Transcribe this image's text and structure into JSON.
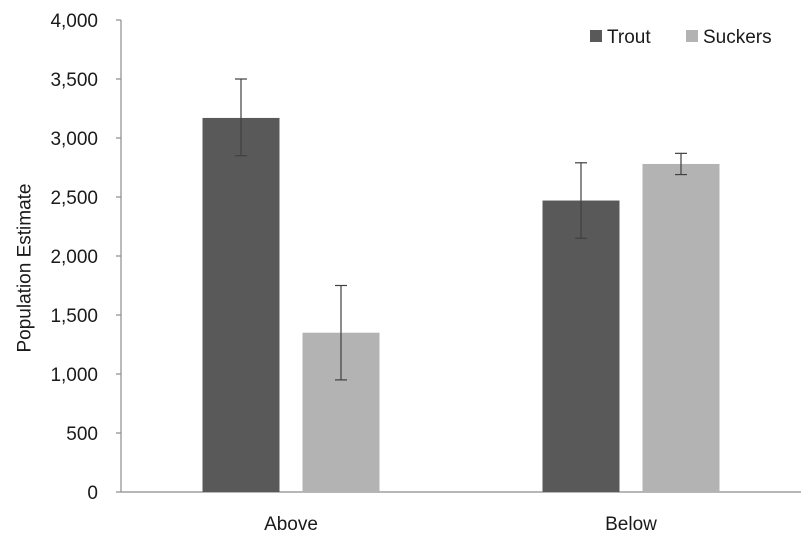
{
  "chart_data": {
    "type": "bar",
    "title": "",
    "xlabel": "",
    "ylabel": "Population Estimate",
    "categories": [
      "Above",
      "Below"
    ],
    "ylim": [
      0,
      4000
    ],
    "yticks": [
      "0",
      "500",
      "1,000",
      "1,500",
      "2,000",
      "2,500",
      "3,000",
      "3,500",
      "4,000"
    ],
    "ytick_values": [
      0,
      500,
      1000,
      1500,
      2000,
      2500,
      3000,
      3500,
      4000
    ],
    "grid": false,
    "legend_position": "top-right",
    "series": [
      {
        "name": "Trout",
        "color": "#595959",
        "values": [
          3170,
          2470
        ],
        "error_low": [
          2850,
          2150
        ],
        "error_high": [
          3500,
          2790
        ]
      },
      {
        "name": "Suckers",
        "color": "#b3b3b3",
        "values": [
          1350,
          2780
        ],
        "error_low": [
          950,
          2690
        ],
        "error_high": [
          1750,
          2870
        ]
      }
    ]
  }
}
